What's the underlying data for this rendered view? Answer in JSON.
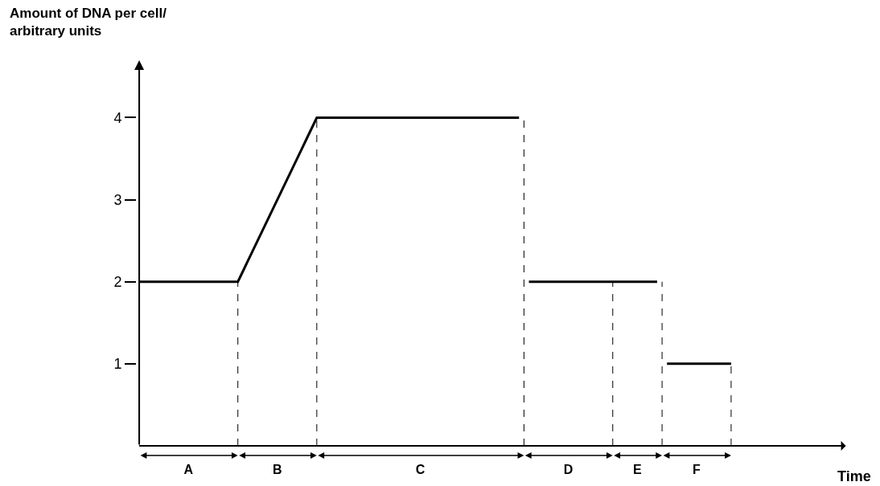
{
  "chart_data": {
    "type": "line",
    "ylabel": "Amount of DNA per cell/\narbitrary units",
    "annotations": [
      "Time"
    ],
    "categories": [
      null,
      null,
      null,
      null,
      null,
      null,
      null,
      null,
      null,
      null,
      "A",
      null,
      null,
      null,
      null,
      null,
      null,
      null,
      null,
      null,
      null,
      null,
      null,
      null,
      null,
      null,
      null,
      null,
      "B",
      null,
      null,
      null,
      null,
      null,
      null,
      null,
      null,
      null,
      null,
      null,
      null,
      null,
      null,
      null,
      null,
      null,
      null,
      null,
      null,
      null,
      null,
      null,
      null,
      null,
      null,
      null,
      null,
      "C",
      null,
      null,
      null,
      null,
      null,
      null,
      null,
      null,
      null,
      null,
      null,
      null,
      null,
      null,
      null,
      null,
      null,
      null,
      null,
      null,
      null,
      null,
      null,
      null,
      null,
      null,
      null,
      null,
      null,
      "D",
      null,
      null,
      null,
      null,
      null,
      null,
      null,
      null,
      null,
      null,
      null,
      null,
      null,
      "E",
      null,
      null,
      null,
      null,
      null,
      null,
      null,
      null,
      null,
      null,
      null,
      "F",
      null,
      null,
      null,
      null,
      null,
      null,
      null
    ],
    "series": [
      {
        "color": "#000000",
        "values": [
          2,
          2,
          2,
          2,
          2,
          2,
          2,
          2,
          2,
          2,
          2,
          2,
          2,
          2,
          2,
          2,
          2,
          2,
          2,
          2,
          2,
          2.125,
          2.25,
          2.375,
          2.5,
          2.625,
          2.75,
          2.875,
          3,
          3.125,
          3.25,
          3.375,
          3.5,
          3.625,
          3.75,
          3.875,
          4,
          4,
          4,
          4,
          4,
          4,
          4,
          4,
          4,
          4,
          4,
          4,
          4,
          4,
          4,
          4,
          4,
          4,
          4,
          4,
          4,
          4,
          4,
          4,
          4,
          4,
          4,
          4,
          4,
          4,
          4,
          4,
          4,
          4,
          4,
          4,
          4,
          4,
          4,
          4,
          4,
          4,
          null,
          2,
          2,
          2,
          2,
          2,
          2,
          2,
          2,
          2,
          2,
          2,
          2,
          2,
          2,
          2,
          2,
          2,
          2,
          2,
          2,
          2,
          2,
          2,
          2,
          2,
          2,
          2,
          null,
          1,
          1,
          1,
          1,
          1,
          1,
          1,
          1,
          1,
          1,
          1,
          1,
          1,
          1
        ]
      }
    ],
    "ylim": [
      0,
      4.7
    ],
    "yticks": [
      1,
      2,
      3,
      4
    ],
    "marker": "none",
    "line_style": "solid"
  }
}
